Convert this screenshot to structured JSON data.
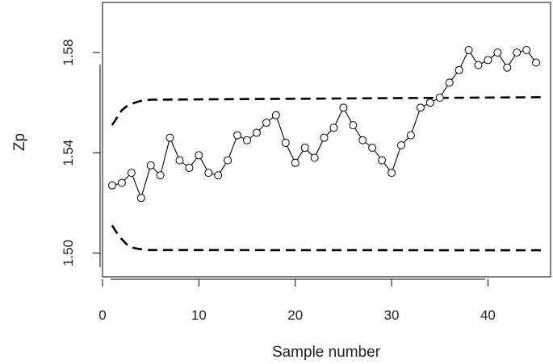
{
  "chart_data": {
    "type": "line",
    "title": "",
    "xlabel": "Sample number",
    "ylabel": "Zp",
    "xlim": [
      0,
      46.5
    ],
    "ylim": [
      1.4905,
      1.6
    ],
    "x_ticks": [
      0,
      10,
      20,
      30,
      40
    ],
    "y_ticks": [
      1.5,
      1.54,
      1.58
    ],
    "x_tick_labels": [
      "0",
      "10",
      "20",
      "30",
      "40"
    ],
    "y_tick_labels": [
      "1.50",
      "1.54",
      "1.58"
    ],
    "grid": false,
    "legend": "none",
    "series": [
      {
        "marker": "circle",
        "color": "#000000",
        "x": [
          1,
          2,
          3,
          4,
          5,
          6,
          7,
          8,
          9,
          10,
          11,
          12,
          13,
          14,
          15,
          16,
          17,
          18,
          19,
          20,
          21,
          22,
          23,
          24,
          25,
          26,
          27,
          28,
          29,
          30,
          31,
          32,
          33,
          34,
          35,
          36,
          37,
          38,
          39,
          40,
          41,
          42,
          43,
          44,
          45
        ],
        "y": [
          1.527,
          1.528,
          1.532,
          1.522,
          1.535,
          1.531,
          1.546,
          1.537,
          1.534,
          1.539,
          1.532,
          1.531,
          1.537,
          1.547,
          1.545,
          1.548,
          1.552,
          1.555,
          1.544,
          1.536,
          1.542,
          1.538,
          1.546,
          1.55,
          1.558,
          1.551,
          1.545,
          1.542,
          1.537,
          1.532,
          1.543,
          1.547,
          1.558,
          1.56,
          1.562,
          1.568,
          1.573,
          1.581,
          1.575,
          1.577,
          1.58,
          1.574,
          1.58,
          1.581,
          1.576
        ]
      }
    ],
    "control_limits": {
      "style": "dashed",
      "color": "#000000",
      "upper": {
        "x": [
          1,
          1.5,
          2,
          2.5,
          3,
          3.5,
          4,
          4.5,
          5,
          46
        ],
        "y": [
          1.551,
          1.554,
          1.557,
          1.5585,
          1.5595,
          1.5602,
          1.5607,
          1.561,
          1.5612,
          1.5622
        ]
      },
      "lower": {
        "x": [
          1,
          1.5,
          2,
          2.5,
          3,
          3.5,
          4,
          4.5,
          5,
          46
        ],
        "y": [
          1.511,
          1.508,
          1.5055,
          1.5035,
          1.5023,
          1.5018,
          1.5015,
          1.5013,
          1.5012,
          1.5011
        ]
      }
    }
  }
}
